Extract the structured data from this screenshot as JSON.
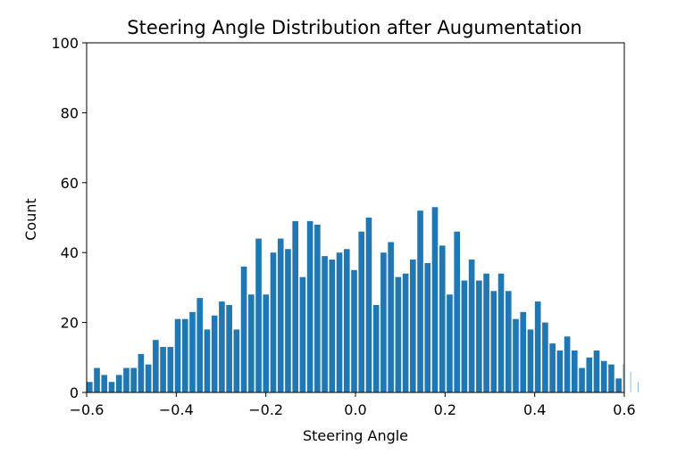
{
  "chart_data": {
    "type": "bar",
    "title": "Steering Angle Distribution after Augumentation",
    "xlabel": "Steering Angle",
    "ylabel": "Count",
    "xlim": [
      -0.6,
      0.6
    ],
    "ylim": [
      0,
      100
    ],
    "xticks": [
      -0.6,
      -0.4,
      -0.2,
      0.0,
      0.2,
      0.4,
      0.6
    ],
    "xtick_labels": [
      "−0.6",
      "−0.4",
      "−0.2",
      "0.0",
      "0.2",
      "0.4",
      "0.6"
    ],
    "yticks": [
      0,
      20,
      40,
      60,
      80,
      100
    ],
    "ytick_labels": [
      "0",
      "20",
      "40",
      "60",
      "80",
      "100"
    ],
    "bar_color": "#1f77b4",
    "bin_start": -0.6,
    "bin_width": 0.0164,
    "values": [
      3,
      7,
      5,
      3,
      5,
      7,
      7,
      11,
      8,
      15,
      13,
      13,
      21,
      21,
      23,
      27,
      18,
      22,
      26,
      25,
      18,
      36,
      28,
      44,
      28,
      40,
      44,
      41,
      49,
      33,
      49,
      48,
      39,
      38,
      40,
      41,
      35,
      46,
      50,
      25,
      40,
      43,
      33,
      34,
      38,
      52,
      37,
      53,
      42,
      28,
      46,
      32,
      38,
      32,
      34,
      29,
      34,
      29,
      21,
      23,
      18,
      26,
      20,
      14,
      12,
      16,
      12,
      7,
      10,
      12,
      9,
      8,
      4,
      8,
      6,
      3
    ]
  }
}
